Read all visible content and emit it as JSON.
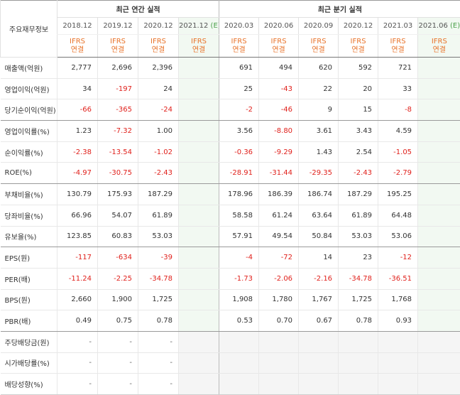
{
  "header": {
    "corner_label": "주요재무정보",
    "annual_group": "최근 연간 실적",
    "quarter_group": "최근 분기 실적",
    "periods": [
      {
        "label": "2018.12",
        "estimate": false
      },
      {
        "label": "2019.12",
        "estimate": false
      },
      {
        "label": "2020.12",
        "estimate": false
      },
      {
        "label": "2021.12",
        "estimate": true
      },
      {
        "label": "2020.03",
        "estimate": false
      },
      {
        "label": "2020.06",
        "estimate": false
      },
      {
        "label": "2020.09",
        "estimate": false
      },
      {
        "label": "2020.12",
        "estimate": false
      },
      {
        "label": "2021.03",
        "estimate": false
      },
      {
        "label": "2021.06",
        "estimate": true
      }
    ],
    "estimate_mark": "(E)",
    "ifrs_label": "IFRS",
    "consolidated_label": "연결"
  },
  "rows": [
    {
      "label": "매출액(억원)",
      "group_end": false,
      "values": [
        "2,777",
        "2,696",
        "2,396",
        "",
        "691",
        "494",
        "620",
        "592",
        "721",
        ""
      ]
    },
    {
      "label": "영업이익(억원)",
      "group_end": false,
      "values": [
        "34",
        "-197",
        "24",
        "",
        "25",
        "-43",
        "22",
        "20",
        "33",
        ""
      ]
    },
    {
      "label": "당기순이익(억원)",
      "group_end": true,
      "values": [
        "-66",
        "-365",
        "-24",
        "",
        "-2",
        "-46",
        "9",
        "15",
        "-8",
        ""
      ]
    },
    {
      "label": "영업이익률(%)",
      "group_end": false,
      "values": [
        "1.23",
        "-7.32",
        "1.00",
        "",
        "3.56",
        "-8.80",
        "3.61",
        "3.43",
        "4.59",
        ""
      ]
    },
    {
      "label": "순이익률(%)",
      "group_end": false,
      "values": [
        "-2.38",
        "-13.54",
        "-1.02",
        "",
        "-0.36",
        "-9.29",
        "1.43",
        "2.54",
        "-1.05",
        ""
      ]
    },
    {
      "label": "ROE(%)",
      "group_end": true,
      "values": [
        "-4.97",
        "-30.75",
        "-2.43",
        "",
        "-28.91",
        "-31.44",
        "-29.35",
        "-2.43",
        "-2.79",
        ""
      ]
    },
    {
      "label": "부채비율(%)",
      "group_end": false,
      "values": [
        "130.79",
        "175.93",
        "187.29",
        "",
        "178.96",
        "186.39",
        "186.74",
        "187.29",
        "195.25",
        ""
      ]
    },
    {
      "label": "당좌비율(%)",
      "group_end": false,
      "values": [
        "66.96",
        "54.07",
        "61.89",
        "",
        "58.58",
        "61.24",
        "63.64",
        "61.89",
        "64.48",
        ""
      ]
    },
    {
      "label": "유보율(%)",
      "group_end": true,
      "values": [
        "123.85",
        "60.83",
        "53.03",
        "",
        "57.91",
        "49.54",
        "50.84",
        "53.03",
        "53.06",
        ""
      ]
    },
    {
      "label": "EPS(원)",
      "group_end": false,
      "values": [
        "-117",
        "-634",
        "-39",
        "",
        "-4",
        "-72",
        "14",
        "23",
        "-12",
        ""
      ]
    },
    {
      "label": "PER(배)",
      "group_end": false,
      "values": [
        "-11.24",
        "-2.25",
        "-34.78",
        "",
        "-1.73",
        "-2.06",
        "-2.16",
        "-34.78",
        "-36.51",
        ""
      ]
    },
    {
      "label": "BPS(원)",
      "group_end": false,
      "values": [
        "2,660",
        "1,900",
        "1,725",
        "",
        "1,908",
        "1,780",
        "1,767",
        "1,725",
        "1,768",
        ""
      ]
    },
    {
      "label": "PBR(배)",
      "group_end": true,
      "values": [
        "0.49",
        "0.75",
        "0.78",
        "",
        "0.53",
        "0.70",
        "0.67",
        "0.78",
        "0.93",
        ""
      ]
    },
    {
      "label": "주당배당금(원)",
      "group_end": false,
      "values": [
        "-",
        "-",
        "-",
        "",
        "",
        "",
        "",
        "",
        "",
        ""
      ]
    },
    {
      "label": "시가배당률(%)",
      "group_end": false,
      "values": [
        "-",
        "-",
        "-",
        "",
        "",
        "",
        "",
        "",
        "",
        ""
      ]
    },
    {
      "label": "배당성향(%)",
      "group_end": false,
      "values": [
        "-",
        "-",
        "-",
        "",
        "",
        "",
        "",
        "",
        "",
        ""
      ]
    }
  ]
}
